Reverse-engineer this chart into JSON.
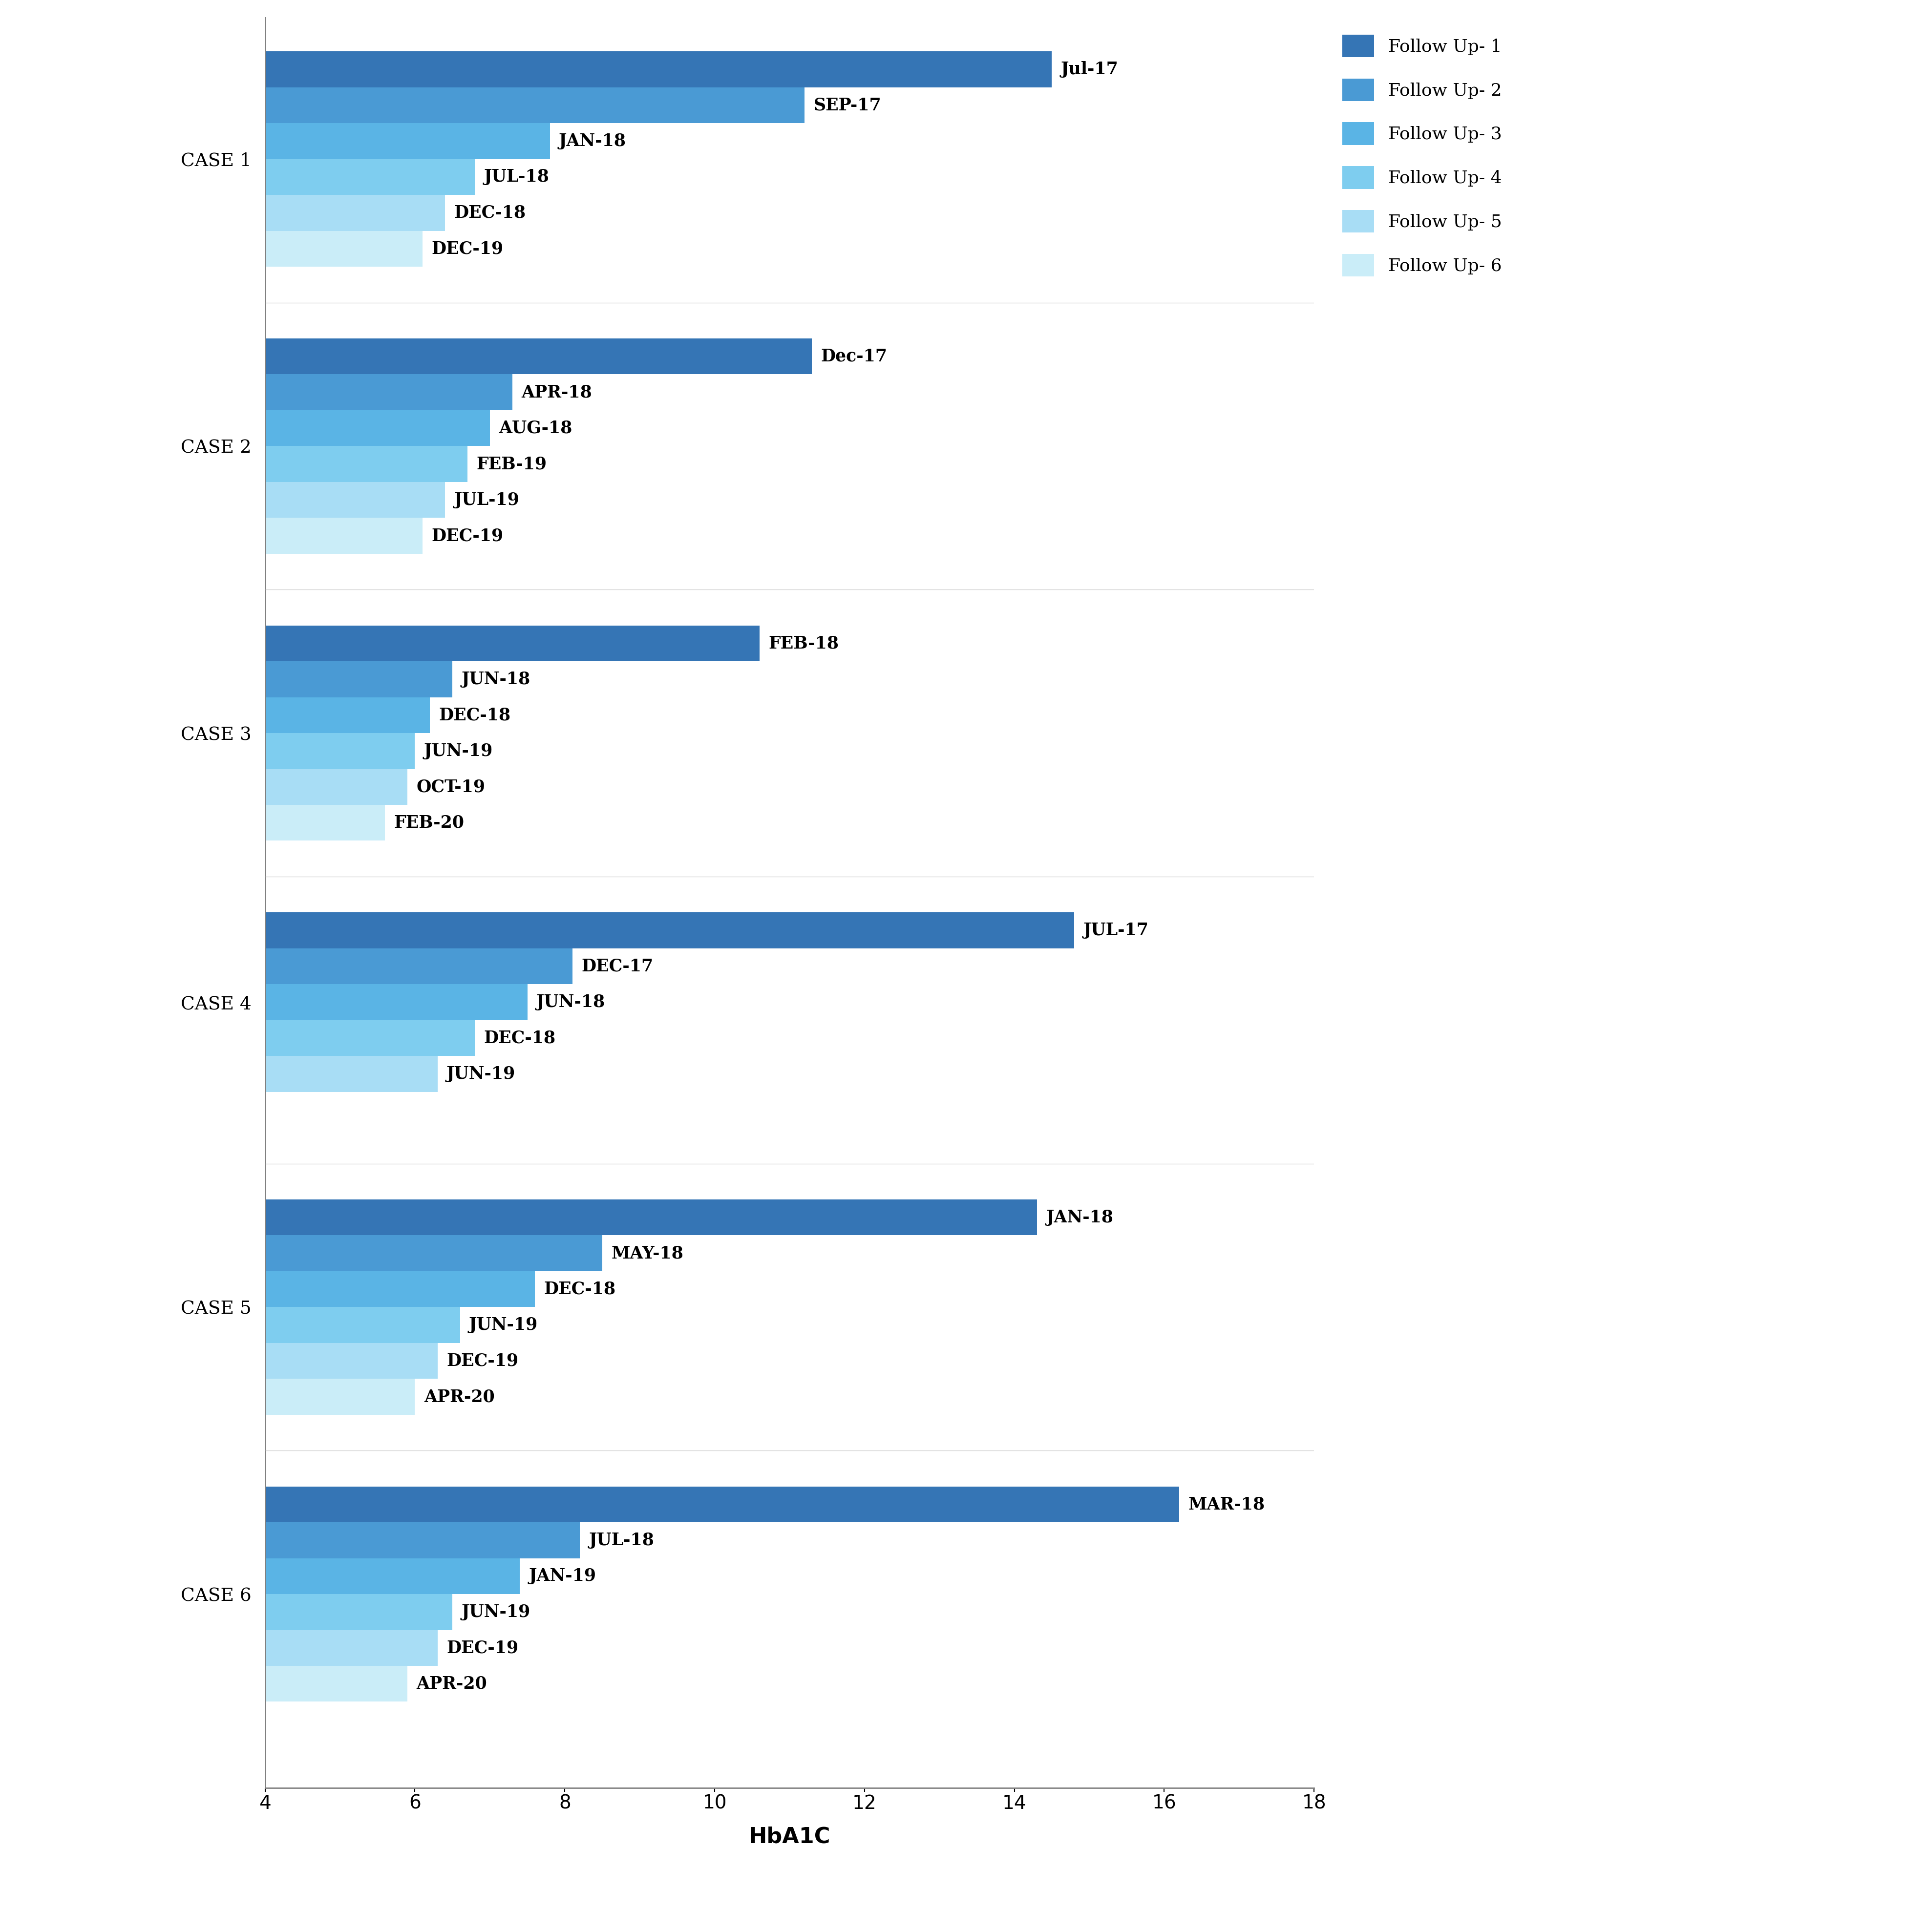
{
  "cases": [
    {
      "label": "CASE 1",
      "bars": [
        {
          "value": 14.5,
          "date": "Jul-17"
        },
        {
          "value": 11.2,
          "date": "SEP-17"
        },
        {
          "value": 7.8,
          "date": "JAN-18"
        },
        {
          "value": 6.8,
          "date": "JUL-18"
        },
        {
          "value": 6.4,
          "date": "DEC-18"
        },
        {
          "value": 6.1,
          "date": "DEC-19"
        }
      ]
    },
    {
      "label": "CASE 2",
      "bars": [
        {
          "value": 11.3,
          "date": "Dec-17"
        },
        {
          "value": 7.3,
          "date": "APR-18"
        },
        {
          "value": 7.0,
          "date": "AUG-18"
        },
        {
          "value": 6.7,
          "date": "FEB-19"
        },
        {
          "value": 6.4,
          "date": "JUL-19"
        },
        {
          "value": 6.1,
          "date": "DEC-19"
        }
      ]
    },
    {
      "label": "CASE 3",
      "bars": [
        {
          "value": 10.6,
          "date": "FEB-18"
        },
        {
          "value": 6.5,
          "date": "JUN-18"
        },
        {
          "value": 6.2,
          "date": "DEC-18"
        },
        {
          "value": 6.0,
          "date": "JUN-19"
        },
        {
          "value": 5.9,
          "date": "OCT-19"
        },
        {
          "value": 5.6,
          "date": "FEB-20"
        }
      ]
    },
    {
      "label": "CASE 4",
      "bars": [
        {
          "value": 14.8,
          "date": "JUL-17"
        },
        {
          "value": 8.1,
          "date": "DEC-17"
        },
        {
          "value": 7.5,
          "date": "JUN-18"
        },
        {
          "value": 6.8,
          "date": "DEC-18"
        },
        {
          "value": 6.3,
          "date": "JUN-19"
        }
      ]
    },
    {
      "label": "CASE 5",
      "bars": [
        {
          "value": 14.3,
          "date": "JAN-18"
        },
        {
          "value": 8.5,
          "date": "MAY-18"
        },
        {
          "value": 7.6,
          "date": "DEC-18"
        },
        {
          "value": 6.6,
          "date": "JUN-19"
        },
        {
          "value": 6.3,
          "date": "DEC-19"
        },
        {
          "value": 6.0,
          "date": "APR-20"
        }
      ]
    },
    {
      "label": "CASE 6",
      "bars": [
        {
          "value": 16.2,
          "date": "MAR-18"
        },
        {
          "value": 8.2,
          "date": "JUL-18"
        },
        {
          "value": 7.4,
          "date": "JAN-19"
        },
        {
          "value": 6.5,
          "date": "JUN-19"
        },
        {
          "value": 6.3,
          "date": "DEC-19"
        },
        {
          "value": 5.9,
          "date": "APR-20"
        }
      ]
    }
  ],
  "colors": [
    "#3575b5",
    "#4a9ad4",
    "#5ab4e5",
    "#7ecdef",
    "#a8ddf5",
    "#caedf8"
  ],
  "legend_labels": [
    "Follow Up- 1",
    "Follow Up- 2",
    "Follow Up- 3",
    "Follow Up- 4",
    "Follow Up- 5",
    "Follow Up- 6"
  ],
  "xlabel": "HbA1C",
  "xlim": [
    4,
    18
  ],
  "xticks": [
    4,
    6,
    8,
    10,
    12,
    14,
    16,
    18
  ],
  "background_color": "#ffffff"
}
